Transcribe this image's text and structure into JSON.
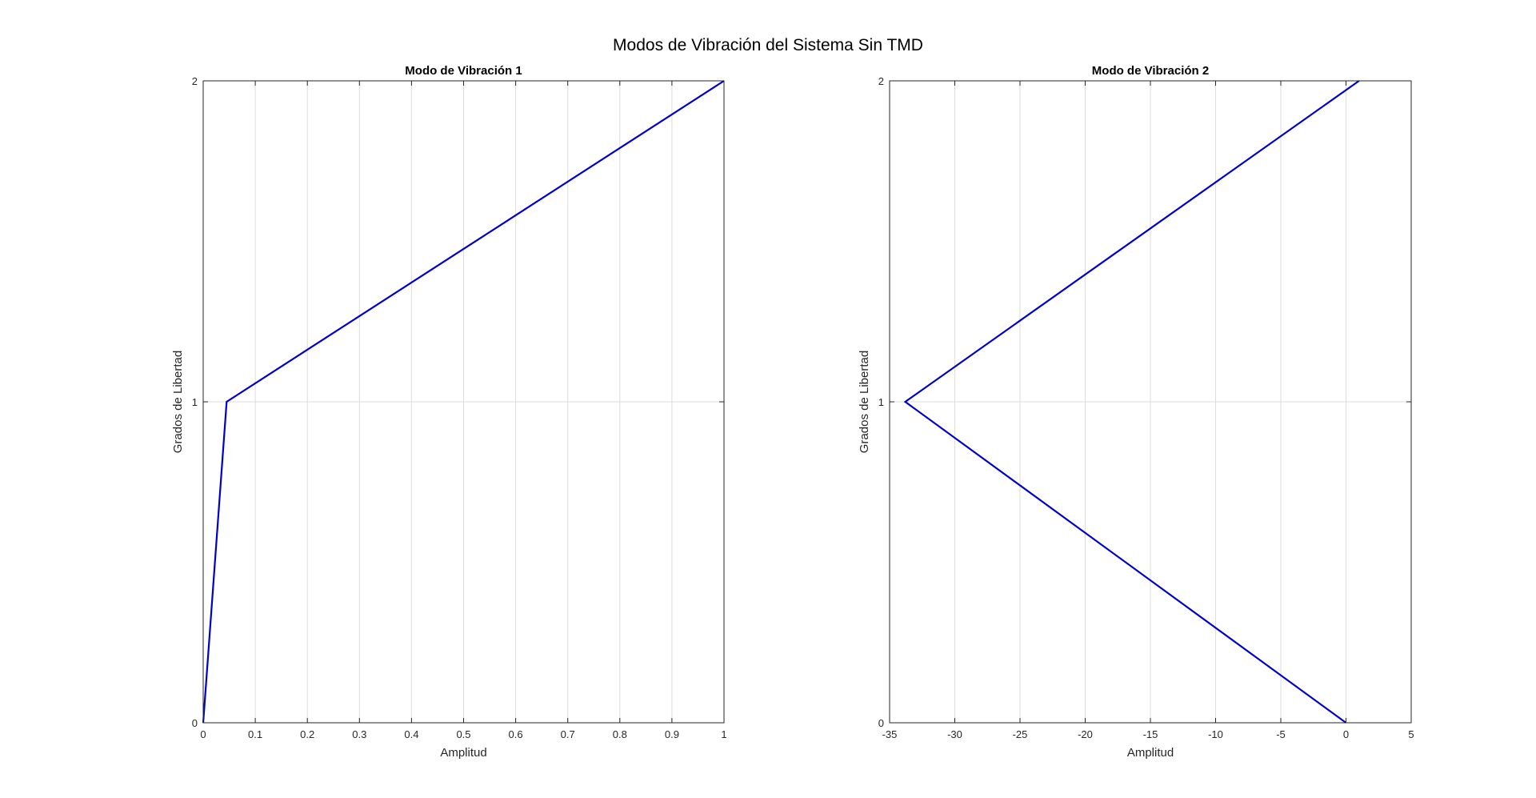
{
  "figure": {
    "title": "Modos de Vibración del Sistema Sin TMD"
  },
  "chart_data": [
    {
      "type": "line",
      "title": "Modo de Vibración 1",
      "xlabel": "Amplitud",
      "ylabel": "Grados de Libertad",
      "xlim": [
        0,
        1
      ],
      "ylim": [
        0,
        2
      ],
      "xticks": [
        0,
        0.1,
        0.2,
        0.3,
        0.4,
        0.5,
        0.6,
        0.7,
        0.8,
        0.9,
        1
      ],
      "xtick_labels": [
        "0",
        "0.1",
        "0.2",
        "0.3",
        "0.4",
        "0.5",
        "0.6",
        "0.7",
        "0.8",
        "0.9",
        "1"
      ],
      "yticks": [
        0,
        1,
        2
      ],
      "ytick_labels": [
        "0",
        "1",
        "2"
      ],
      "grid": true,
      "line_color": "#0000cc",
      "series": [
        {
          "x": [
            0,
            0.045,
            1
          ],
          "y": [
            0,
            1,
            2
          ]
        }
      ]
    },
    {
      "type": "line",
      "title": "Modo de Vibración 2",
      "xlabel": "Amplitud",
      "ylabel": "Grados de Libertad",
      "xlim": [
        -35,
        5
      ],
      "ylim": [
        0,
        2
      ],
      "xticks": [
        -35,
        -30,
        -25,
        -20,
        -15,
        -10,
        -5,
        0,
        5
      ],
      "xtick_labels": [
        "-35",
        "-30",
        "-25",
        "-20",
        "-15",
        "-10",
        "-5",
        "0",
        "5"
      ],
      "yticks": [
        0,
        1,
        2
      ],
      "ytick_labels": [
        "0",
        "1",
        "2"
      ],
      "grid": true,
      "line_color": "#0000cc",
      "series": [
        {
          "x": [
            0,
            -33.8,
            1
          ],
          "y": [
            0,
            1,
            2
          ]
        }
      ]
    }
  ]
}
